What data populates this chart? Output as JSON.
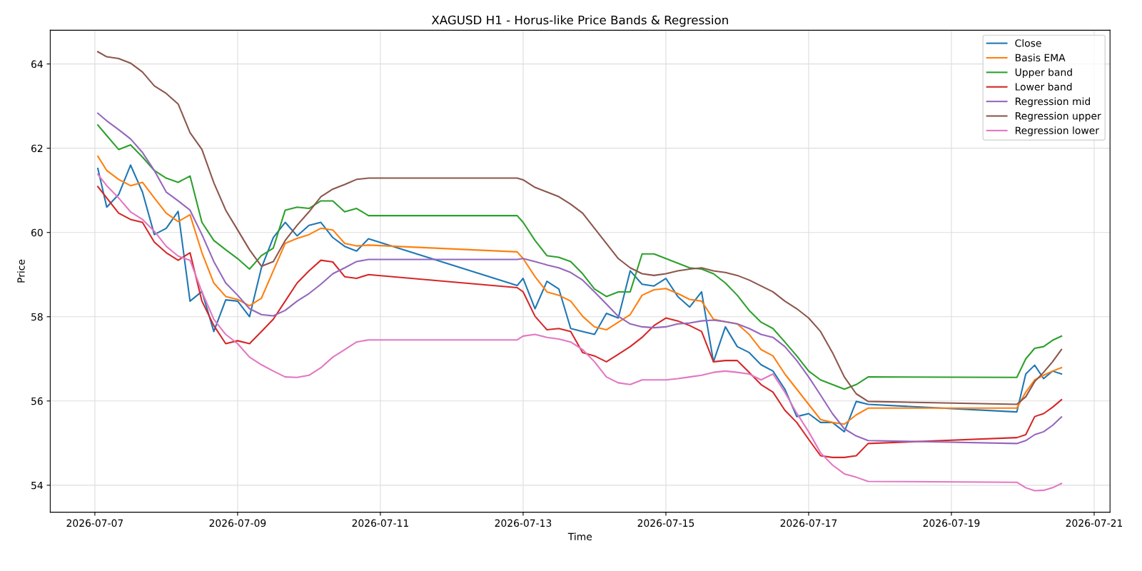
{
  "chart_data": {
    "type": "line",
    "title": "XAGUSD H1 - Horus-like Price Bands & Regression",
    "xlabel": "Time",
    "ylabel": "Price",
    "x": [
      "2026-07-07T01:00",
      "2026-07-07T04:00",
      "2026-07-07T08:00",
      "2026-07-07T12:00",
      "2026-07-07T16:00",
      "2026-07-07T20:00",
      "2026-07-08T00:00",
      "2026-07-08T04:00",
      "2026-07-08T08:00",
      "2026-07-08T12:00",
      "2026-07-08T16:00",
      "2026-07-08T20:00",
      "2026-07-09T00:00",
      "2026-07-09T04:00",
      "2026-07-09T08:00",
      "2026-07-09T12:00",
      "2026-07-09T16:00",
      "2026-07-09T20:00",
      "2026-07-10T00:00",
      "2026-07-10T04:00",
      "2026-07-10T08:00",
      "2026-07-10T12:00",
      "2026-07-10T16:00",
      "2026-07-10T20:00",
      "2026-07-12T22:00",
      "2026-07-13T00:00",
      "2026-07-13T04:00",
      "2026-07-13T08:00",
      "2026-07-13T12:00",
      "2026-07-13T16:00",
      "2026-07-13T20:00",
      "2026-07-14T00:00",
      "2026-07-14T04:00",
      "2026-07-14T08:00",
      "2026-07-14T12:00",
      "2026-07-14T16:00",
      "2026-07-14T20:00",
      "2026-07-15T00:00",
      "2026-07-15T04:00",
      "2026-07-15T08:00",
      "2026-07-15T12:00",
      "2026-07-15T16:00",
      "2026-07-15T20:00",
      "2026-07-16T00:00",
      "2026-07-16T04:00",
      "2026-07-16T08:00",
      "2026-07-16T12:00",
      "2026-07-16T16:00",
      "2026-07-16T20:00",
      "2026-07-17T00:00",
      "2026-07-17T04:00",
      "2026-07-17T08:00",
      "2026-07-17T12:00",
      "2026-07-17T16:00",
      "2026-07-17T20:00",
      "2026-07-19T22:00",
      "2026-07-20T01:00",
      "2026-07-20T04:00",
      "2026-07-20T07:00",
      "2026-07-20T10:00",
      "2026-07-20T13:00"
    ],
    "series": [
      {
        "name": "Close",
        "color": "#1f77b4",
        "values": [
          61.52,
          60.6,
          60.9,
          61.6,
          60.96,
          59.95,
          60.1,
          60.5,
          58.37,
          58.6,
          57.65,
          58.4,
          58.37,
          58.0,
          59.16,
          59.88,
          60.24,
          59.92,
          60.17,
          60.24,
          59.88,
          59.67,
          59.56,
          59.85,
          58.74,
          58.91,
          58.19,
          58.84,
          58.66,
          57.72,
          57.65,
          57.58,
          58.08,
          57.97,
          59.09,
          58.77,
          58.73,
          58.91,
          58.48,
          58.23,
          58.59,
          56.93,
          57.76,
          57.29,
          57.15,
          56.86,
          56.71,
          56.28,
          55.63,
          55.7,
          55.49,
          55.49,
          55.27,
          55.99,
          55.92,
          55.74,
          56.64,
          56.85,
          56.53,
          56.71,
          56.64
        ]
      },
      {
        "name": "Basis EMA",
        "color": "#ff7f0e",
        "values": [
          61.81,
          61.47,
          61.26,
          61.11,
          61.19,
          60.82,
          60.46,
          60.26,
          60.42,
          59.52,
          58.8,
          58.48,
          58.41,
          58.26,
          58.44,
          59.09,
          59.74,
          59.86,
          59.95,
          60.1,
          60.06,
          59.74,
          59.68,
          59.7,
          59.54,
          59.38,
          58.95,
          58.59,
          58.51,
          58.37,
          58.01,
          57.76,
          57.69,
          57.87,
          58.05,
          58.51,
          58.64,
          58.67,
          58.55,
          58.41,
          58.37,
          57.94,
          57.88,
          57.83,
          57.58,
          57.22,
          57.07,
          56.64,
          56.28,
          55.92,
          55.56,
          55.49,
          55.45,
          55.67,
          55.83,
          55.83,
          56.21,
          56.5,
          56.61,
          56.71,
          56.79
        ]
      },
      {
        "name": "Upper band",
        "color": "#2ca02c",
        "values": [
          62.55,
          62.3,
          61.97,
          62.08,
          61.79,
          61.47,
          61.29,
          61.19,
          61.34,
          60.24,
          59.81,
          59.59,
          59.38,
          59.13,
          59.45,
          59.63,
          60.53,
          60.6,
          60.57,
          60.75,
          60.75,
          60.49,
          60.57,
          60.4,
          60.4,
          60.24,
          59.81,
          59.45,
          59.41,
          59.31,
          59.02,
          58.66,
          58.48,
          58.59,
          58.59,
          59.49,
          59.49,
          59.38,
          59.27,
          59.16,
          59.13,
          59.02,
          58.8,
          58.51,
          58.15,
          57.87,
          57.72,
          57.4,
          57.07,
          56.71,
          56.5,
          56.39,
          56.28,
          56.39,
          56.57,
          56.56,
          57.0,
          57.25,
          57.29,
          57.44,
          57.54
        ]
      },
      {
        "name": "Lower band",
        "color": "#d62728",
        "values": [
          61.09,
          60.82,
          60.46,
          60.31,
          60.24,
          59.77,
          59.52,
          59.34,
          59.52,
          58.37,
          57.79,
          57.36,
          57.43,
          57.36,
          57.65,
          57.94,
          58.37,
          58.8,
          59.09,
          59.34,
          59.3,
          58.95,
          58.91,
          59.0,
          58.69,
          58.59,
          58.01,
          57.69,
          57.72,
          57.65,
          57.15,
          57.07,
          56.93,
          57.11,
          57.29,
          57.51,
          57.79,
          57.97,
          57.9,
          57.79,
          57.65,
          56.93,
          56.96,
          56.96,
          56.68,
          56.39,
          56.21,
          55.78,
          55.49,
          55.09,
          54.7,
          54.66,
          54.66,
          54.7,
          54.99,
          55.13,
          55.2,
          55.63,
          55.7,
          55.85,
          56.03
        ]
      },
      {
        "name": "Regression mid",
        "color": "#9467bd",
        "values": [
          62.83,
          62.65,
          62.44,
          62.22,
          61.9,
          61.47,
          60.96,
          60.75,
          60.53,
          59.95,
          59.31,
          58.8,
          58.51,
          58.19,
          58.05,
          58.02,
          58.15,
          58.37,
          58.55,
          58.77,
          59.02,
          59.16,
          59.31,
          59.36,
          59.36,
          59.38,
          59.31,
          59.23,
          59.16,
          59.05,
          58.87,
          58.59,
          58.3,
          58.01,
          57.83,
          57.76,
          57.74,
          57.76,
          57.83,
          57.85,
          57.9,
          57.92,
          57.88,
          57.83,
          57.72,
          57.58,
          57.51,
          57.29,
          56.96,
          56.57,
          56.14,
          55.7,
          55.34,
          55.17,
          55.06,
          54.99,
          55.06,
          55.2,
          55.27,
          55.42,
          55.62
        ]
      },
      {
        "name": "Regression upper",
        "color": "#8c564b",
        "values": [
          64.29,
          64.17,
          64.13,
          64.02,
          63.81,
          63.48,
          63.3,
          63.05,
          62.37,
          61.97,
          61.18,
          60.53,
          60.06,
          59.59,
          59.2,
          59.31,
          59.81,
          60.17,
          60.49,
          60.85,
          61.03,
          61.14,
          61.26,
          61.29,
          61.29,
          61.25,
          61.07,
          60.96,
          60.85,
          60.67,
          60.46,
          60.1,
          59.74,
          59.38,
          59.16,
          59.02,
          58.98,
          59.02,
          59.09,
          59.13,
          59.16,
          59.09,
          59.05,
          58.98,
          58.87,
          58.73,
          58.59,
          58.37,
          58.19,
          57.97,
          57.65,
          57.15,
          56.57,
          56.17,
          55.99,
          55.92,
          56.1,
          56.46,
          56.68,
          56.93,
          57.22
        ]
      },
      {
        "name": "Regression lower",
        "color": "#e377c2",
        "values": [
          61.38,
          61.11,
          60.82,
          60.49,
          60.31,
          60.03,
          59.67,
          59.44,
          59.34,
          58.59,
          57.94,
          57.58,
          57.36,
          57.04,
          56.86,
          56.71,
          56.57,
          56.56,
          56.61,
          56.79,
          57.04,
          57.22,
          57.4,
          57.45,
          57.45,
          57.54,
          57.58,
          57.51,
          57.47,
          57.4,
          57.22,
          56.93,
          56.57,
          56.43,
          56.39,
          56.5,
          56.5,
          56.5,
          56.53,
          56.57,
          56.61,
          56.68,
          56.71,
          56.68,
          56.64,
          56.5,
          56.64,
          56.21,
          55.71,
          55.27,
          54.77,
          54.48,
          54.27,
          54.19,
          54.09,
          54.07,
          53.94,
          53.87,
          53.88,
          53.94,
          54.04
        ]
      }
    ],
    "xlim": [
      "2026-07-06T09:00",
      "2026-07-21T05:20"
    ],
    "ylim": [
      53.36,
      64.8
    ],
    "xticks": [
      {
        "value": "2026-07-07",
        "label": "2026-07-07"
      },
      {
        "value": "2026-07-09",
        "label": "2026-07-09"
      },
      {
        "value": "2026-07-11",
        "label": "2026-07-11"
      },
      {
        "value": "2026-07-13",
        "label": "2026-07-13"
      },
      {
        "value": "2026-07-15",
        "label": "2026-07-15"
      },
      {
        "value": "2026-07-17",
        "label": "2026-07-17"
      },
      {
        "value": "2026-07-19",
        "label": "2026-07-19"
      },
      {
        "value": "2026-07-21",
        "label": "2026-07-21"
      }
    ],
    "yticks": [
      54,
      56,
      58,
      60,
      62,
      64
    ],
    "grid": true,
    "legend": "top right",
    "marker": "none",
    "line_style": "solid"
  }
}
